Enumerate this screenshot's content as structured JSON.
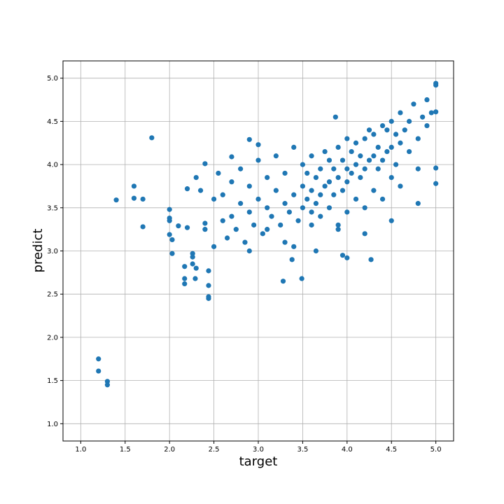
{
  "chart_data": {
    "type": "scatter",
    "x_label": "target",
    "y_label": "predict",
    "color": "#1f77b4",
    "grid": true,
    "xlim": [
      0.8,
      5.2
    ],
    "ylim": [
      0.8,
      5.2
    ],
    "xticks": [
      {
        "value": 1,
        "label": "1.0"
      },
      {
        "value": 1.5,
        "label": "1.5"
      },
      {
        "value": 2,
        "label": "2.0"
      },
      {
        "value": 2.5,
        "label": "2.5"
      },
      {
        "value": 3,
        "label": "3.0"
      },
      {
        "value": 3.5,
        "label": "3.5"
      },
      {
        "value": 4,
        "label": "4.0"
      },
      {
        "value": 4.5,
        "label": "4.5"
      },
      {
        "value": 5,
        "label": "5.0"
      }
    ],
    "yticks": [
      {
        "value": 1,
        "label": "1.0"
      },
      {
        "value": 1.5,
        "label": "1.5"
      },
      {
        "value": 2,
        "label": "2.0"
      },
      {
        "value": 2.5,
        "label": "2.5"
      },
      {
        "value": 3,
        "label": "3.0"
      },
      {
        "value": 3.5,
        "label": "3.5"
      },
      {
        "value": 4,
        "label": "4.0"
      },
      {
        "value": 4.5,
        "label": "4.5"
      },
      {
        "value": 5,
        "label": "5.0"
      }
    ],
    "x": [
      1.2,
      1.2,
      1.3,
      1.3,
      1.4,
      1.6,
      1.6,
      1.7,
      1.7,
      1.8,
      2.0,
      2.0,
      2.0,
      2.0,
      2.03,
      2.03,
      2.1,
      2.2,
      2.2,
      2.17,
      2.17,
      2.17,
      2.26,
      2.26,
      2.26,
      2.29,
      2.3,
      2.4,
      2.4,
      2.4,
      2.44,
      2.44,
      2.44,
      2.44,
      3.28,
      3.38,
      3.49,
      3.65,
      4.27,
      4.0,
      3.95,
      5.0,
      5.0,
      5.0,
      5.0,
      5.0,
      3.87,
      2.7,
      2.9,
      3.0,
      2.3,
      2.35,
      2.5,
      2.5,
      2.55,
      2.6,
      2.6,
      2.65,
      2.7,
      2.7,
      2.75,
      2.8,
      2.8,
      2.85,
      2.9,
      2.9,
      2.95,
      3.0,
      3.0,
      3.05,
      3.1,
      3.1,
      3.15,
      3.2,
      3.2,
      3.25,
      3.3,
      3.3,
      3.35,
      3.4,
      3.4,
      3.45,
      3.5,
      3.5,
      3.5,
      3.55,
      3.55,
      3.6,
      3.6,
      3.6,
      3.65,
      3.65,
      3.7,
      3.7,
      3.7,
      3.75,
      3.75,
      3.8,
      3.8,
      3.8,
      3.85,
      3.85,
      3.9,
      3.9,
      3.9,
      3.95,
      3.95,
      4.0,
      4.0,
      4.0,
      4.0,
      4.05,
      4.05,
      4.1,
      4.1,
      4.1,
      4.15,
      4.15,
      4.2,
      4.2,
      4.2,
      4.25,
      4.25,
      4.3,
      4.3,
      4.3,
      4.35,
      4.35,
      4.4,
      4.4,
      4.4,
      4.45,
      4.45,
      4.5,
      4.5,
      4.5,
      4.55,
      4.55,
      4.6,
      4.6,
      4.6,
      4.65,
      4.7,
      4.7,
      4.75,
      4.8,
      4.8,
      4.85,
      4.9,
      4.9,
      4.95,
      3.1,
      3.3,
      3.6,
      3.9,
      4.2,
      4.5,
      4.8,
      2.9,
      3.4
    ],
    "y": [
      1.75,
      1.61,
      1.49,
      1.45,
      3.59,
      3.75,
      3.61,
      3.6,
      3.28,
      4.31,
      3.48,
      3.38,
      3.35,
      3.19,
      3.13,
      2.97,
      3.29,
      3.27,
      3.72,
      2.82,
      2.68,
      2.62,
      2.97,
      2.93,
      2.85,
      2.68,
      2.8,
      3.32,
      3.25,
      4.01,
      2.77,
      2.6,
      2.47,
      2.45,
      2.65,
      2.9,
      2.68,
      3.0,
      2.9,
      2.92,
      2.95,
      4.94,
      4.92,
      4.61,
      3.78,
      3.96,
      4.55,
      4.09,
      4.29,
      4.23,
      3.85,
      3.7,
      3.05,
      3.6,
      3.9,
      3.35,
      3.65,
      3.15,
      3.4,
      3.8,
      3.25,
      3.55,
      3.95,
      3.1,
      3.45,
      3.75,
      3.3,
      3.6,
      4.05,
      3.2,
      3.5,
      3.85,
      3.4,
      3.7,
      4.1,
      3.3,
      3.55,
      3.9,
      3.45,
      3.65,
      4.2,
      3.35,
      3.5,
      3.75,
      4.0,
      3.6,
      3.9,
      3.45,
      3.7,
      4.1,
      3.55,
      3.85,
      3.4,
      3.65,
      3.95,
      3.75,
      4.15,
      3.5,
      3.8,
      4.05,
      3.65,
      3.95,
      3.3,
      3.85,
      4.2,
      3.7,
      4.05,
      3.45,
      3.8,
      3.95,
      4.3,
      3.9,
      4.15,
      3.6,
      4.0,
      4.25,
      3.85,
      4.1,
      3.5,
      3.95,
      4.3,
      4.05,
      4.4,
      3.7,
      4.1,
      4.35,
      3.95,
      4.2,
      3.6,
      4.05,
      4.45,
      4.15,
      4.4,
      3.85,
      4.2,
      4.5,
      4.0,
      4.35,
      3.75,
      4.25,
      4.6,
      4.4,
      4.15,
      4.5,
      4.7,
      4.3,
      3.95,
      4.55,
      4.75,
      4.45,
      4.6,
      3.25,
      3.1,
      3.3,
      3.25,
      3.2,
      3.35,
      3.55,
      3.0,
      3.05
    ]
  }
}
